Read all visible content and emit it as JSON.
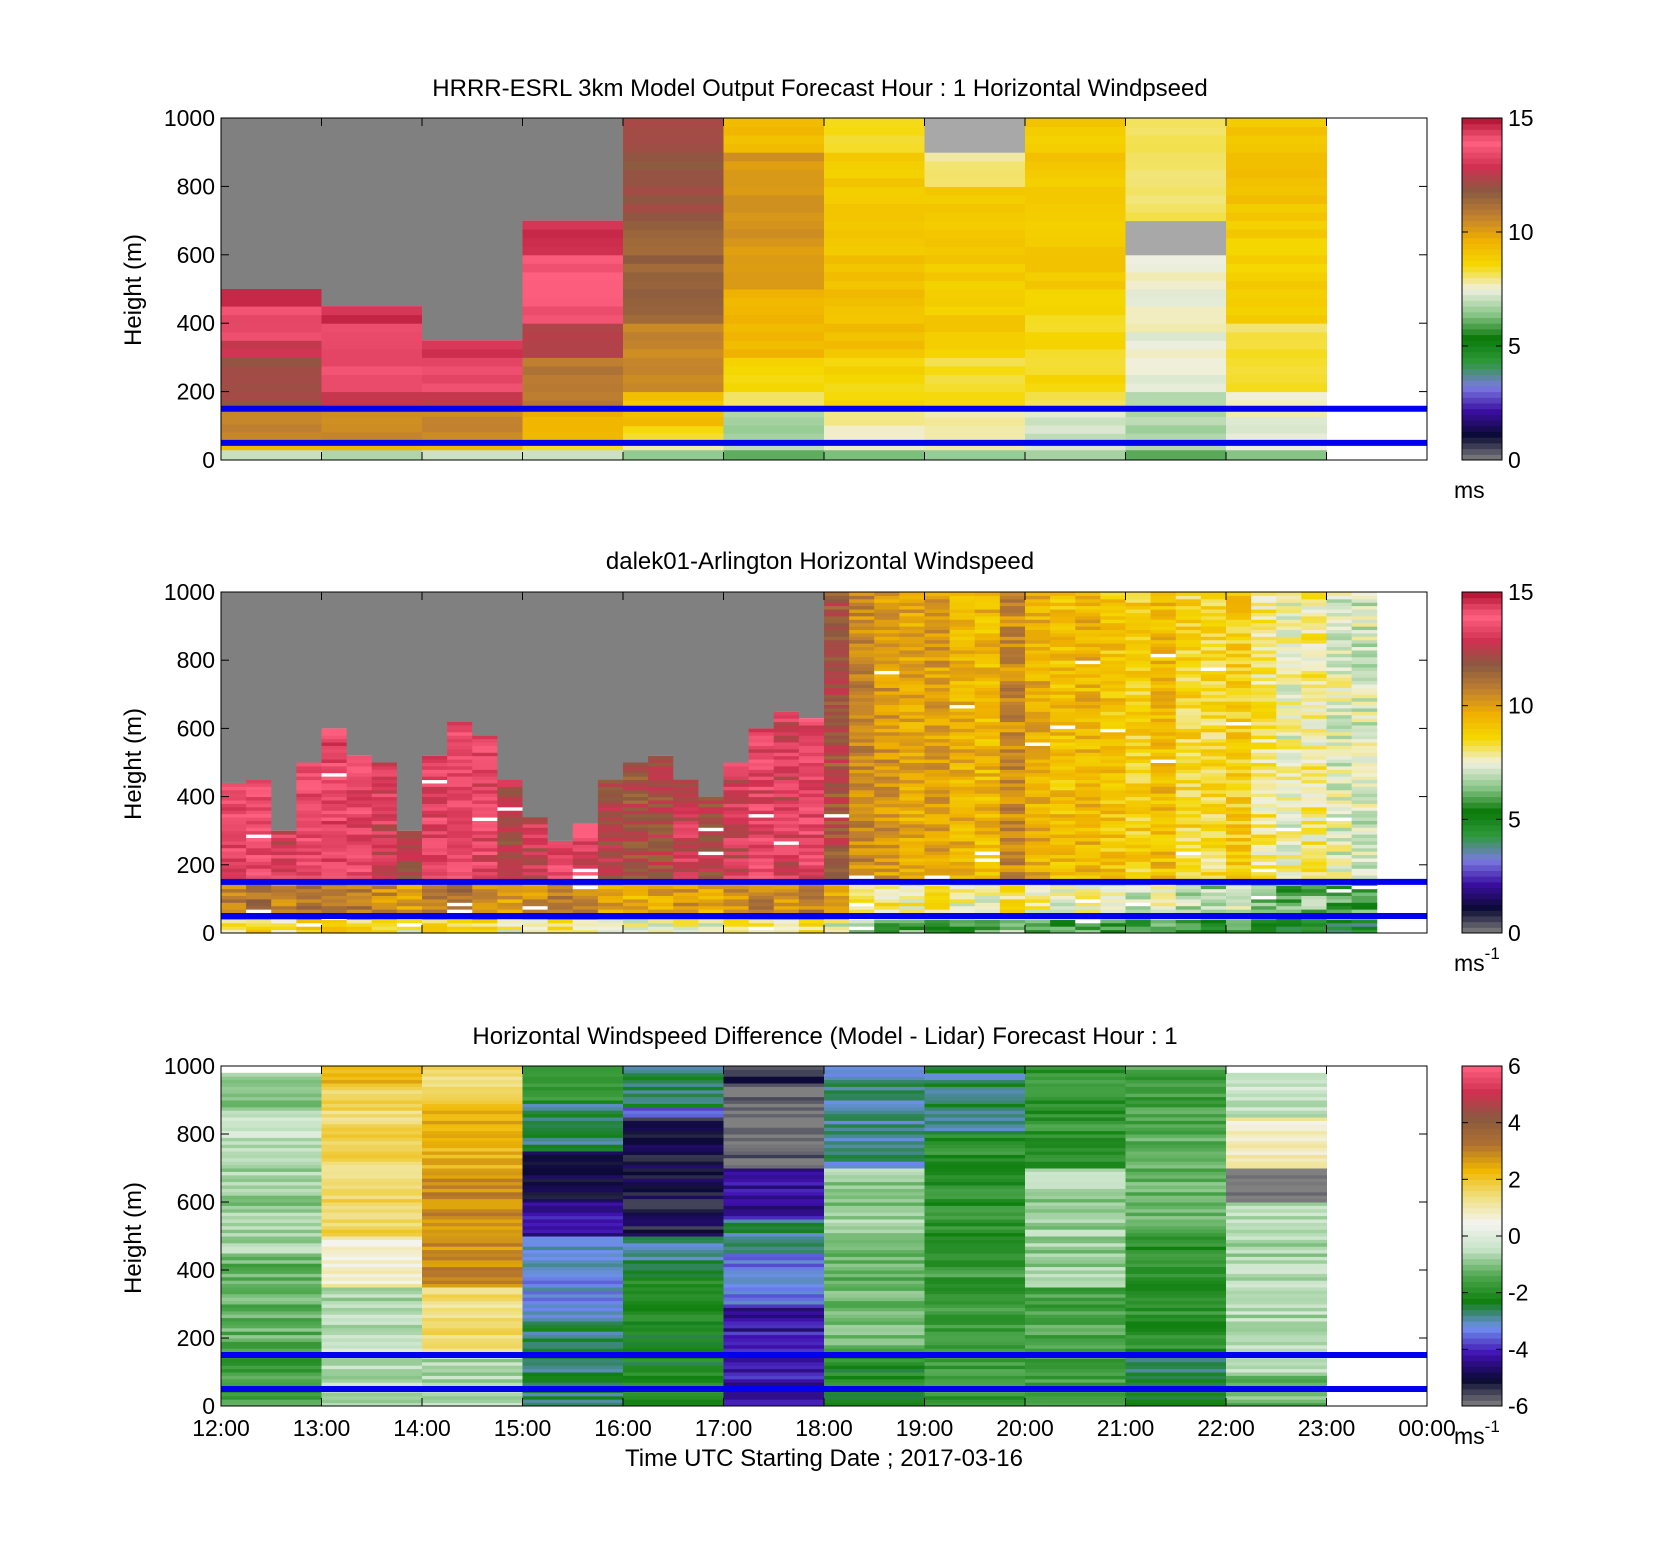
{
  "colors": {
    "background": "#ffffff",
    "guide_line": "#0000ee",
    "no_data": "#808080",
    "speed_scale": [
      "#808080",
      "#0a0a33",
      "#3a0ea0",
      "#7a7ae0",
      "#2e9a3a",
      "#0a7a0a",
      "#8cc88c",
      "#f0f0e0",
      "#f5d800",
      "#f0b000",
      "#c08030",
      "#8a5a40",
      "#d03050",
      "#ff6080",
      "#b01030"
    ],
    "diff_scale": [
      "#808080",
      "#0a0a33",
      "#4010b0",
      "#7090f0",
      "#108010",
      "#50a850",
      "#c8e4c8",
      "#f4f4f0",
      "#f0e080",
      "#f0b800",
      "#b07030",
      "#8a5a40",
      "#d03050",
      "#ff6080"
    ]
  },
  "time_ticks": [
    "12:00",
    "13:00",
    "14:00",
    "15:00",
    "16:00",
    "17:00",
    "18:00",
    "19:00",
    "20:00",
    "21:00",
    "22:00",
    "23:00",
    "00:00"
  ],
  "height_ticks": [
    "0",
    "200",
    "400",
    "600",
    "800",
    "1000"
  ],
  "ylabel": "Height (m)",
  "xlabel": "Time UTC  Starting Date ; 2017-03-16",
  "chart_data": [
    {
      "type": "heatmap",
      "title": "HRRR-ESRL 3km Model Output   Forecast Hour : 1 Horizontal Windpseed",
      "xlabel": "",
      "ylabel": "Height (m)",
      "x_range": [
        "12:00",
        "00:00"
      ],
      "ylim": [
        0,
        1000
      ],
      "colorbar": {
        "min": 0,
        "max": 15,
        "ticks": [
          "0",
          "5",
          "10",
          "15"
        ],
        "unit": "ms",
        "unit_sup": ""
      },
      "reference_heights_m": [
        50,
        150
      ],
      "columns": [
        {
          "t0": 12,
          "t1": 13,
          "top_m": 500,
          "segments": [
            {
              "h0": 0,
              "h1": 30,
              "v": 7
            },
            {
              "h0": 30,
              "h1": 60,
              "v": 9.5
            },
            {
              "h0": 60,
              "h1": 150,
              "v": 10.5
            },
            {
              "h0": 150,
              "h1": 300,
              "v": 12
            },
            {
              "h0": 300,
              "h1": 350,
              "v": 12.8
            },
            {
              "h0": 350,
              "h1": 450,
              "v": 13.5
            },
            {
              "h0": 450,
              "h1": 500,
              "v": 14.5
            }
          ]
        },
        {
          "t0": 13,
          "t1": 14,
          "top_m": 450,
          "segments": [
            {
              "h0": 0,
              "h1": 30,
              "v": 7
            },
            {
              "h0": 30,
              "h1": 60,
              "v": 9.5
            },
            {
              "h0": 60,
              "h1": 150,
              "v": 10.5
            },
            {
              "h0": 150,
              "h1": 200,
              "v": 12.5
            },
            {
              "h0": 200,
              "h1": 400,
              "v": 13.5
            },
            {
              "h0": 400,
              "h1": 450,
              "v": 14.5
            }
          ]
        },
        {
          "t0": 14,
          "t1": 15,
          "top_m": 350,
          "segments": [
            {
              "h0": 0,
              "h1": 30,
              "v": 7
            },
            {
              "h0": 30,
              "h1": 60,
              "v": 9.5
            },
            {
              "h0": 60,
              "h1": 150,
              "v": 10.5
            },
            {
              "h0": 150,
              "h1": 200,
              "v": 12.5
            },
            {
              "h0": 200,
              "h1": 300,
              "v": 13.5
            },
            {
              "h0": 300,
              "h1": 350,
              "v": 14.5
            }
          ]
        },
        {
          "t0": 15,
          "t1": 16,
          "top_m": 700,
          "segments": [
            {
              "h0": 0,
              "h1": 30,
              "v": 7
            },
            {
              "h0": 30,
              "h1": 60,
              "v": 8.5
            },
            {
              "h0": 60,
              "h1": 150,
              "v": 9.5
            },
            {
              "h0": 150,
              "h1": 300,
              "v": 11
            },
            {
              "h0": 300,
              "h1": 400,
              "v": 12.5
            },
            {
              "h0": 400,
              "h1": 450,
              "v": 13.5
            },
            {
              "h0": 450,
              "h1": 600,
              "v": 13.8
            },
            {
              "h0": 600,
              "h1": 700,
              "v": 14.6
            }
          ]
        },
        {
          "t0": 16,
          "t1": 17,
          "top_m": 1000,
          "segments": [
            {
              "h0": 0,
              "h1": 30,
              "v": 6.5
            },
            {
              "h0": 30,
              "h1": 60,
              "v": 7.5
            },
            {
              "h0": 60,
              "h1": 100,
              "v": 8.5
            },
            {
              "h0": 100,
              "h1": 200,
              "v": 9.2
            },
            {
              "h0": 200,
              "h1": 400,
              "v": 10.5
            },
            {
              "h0": 400,
              "h1": 700,
              "v": 11.5
            },
            {
              "h0": 700,
              "h1": 1000,
              "v": 12
            }
          ]
        },
        {
          "t0": 17,
          "t1": 18,
          "top_m": 1000,
          "segments": [
            {
              "h0": 0,
              "h1": 30,
              "v": 6
            },
            {
              "h0": 30,
              "h1": 150,
              "v": 6.8
            },
            {
              "h0": 150,
              "h1": 200,
              "v": 8
            },
            {
              "h0": 200,
              "h1": 300,
              "v": 8.5
            },
            {
              "h0": 300,
              "h1": 500,
              "v": 9.5
            },
            {
              "h0": 500,
              "h1": 900,
              "v": 10.2
            },
            {
              "h0": 900,
              "h1": 1000,
              "v": 9.4
            }
          ]
        },
        {
          "t0": 18,
          "t1": 19,
          "top_m": 1000,
          "segments": [
            {
              "h0": 0,
              "h1": 30,
              "v": 6.5
            },
            {
              "h0": 30,
              "h1": 150,
              "v": 7.8
            },
            {
              "h0": 150,
              "h1": 300,
              "v": 8.6
            },
            {
              "h0": 300,
              "h1": 600,
              "v": 9.2
            },
            {
              "h0": 600,
              "h1": 900,
              "v": 9
            },
            {
              "h0": 900,
              "h1": 1000,
              "v": 8.4
            }
          ]
        },
        {
          "t0": 19,
          "t1": 20,
          "top_m": 1000,
          "segments": [
            {
              "h0": 0,
              "h1": 30,
              "v": 6.5
            },
            {
              "h0": 30,
              "h1": 150,
              "v": 7.8
            },
            {
              "h0": 150,
              "h1": 300,
              "v": 8.3
            },
            {
              "h0": 300,
              "h1": 800,
              "v": 8.9
            },
            {
              "h0": 800,
              "h1": 900,
              "v": 8
            },
            {
              "h0": 900,
              "h1": 1000,
              "v": 0
            }
          ]
        },
        {
          "t0": 20,
          "t1": 21,
          "top_m": 1000,
          "segments": [
            {
              "h0": 0,
              "h1": 30,
              "v": 6.5
            },
            {
              "h0": 30,
              "h1": 150,
              "v": 7.2
            },
            {
              "h0": 150,
              "h1": 200,
              "v": 8
            },
            {
              "h0": 200,
              "h1": 500,
              "v": 8.5
            },
            {
              "h0": 500,
              "h1": 1000,
              "v": 9
            }
          ]
        },
        {
          "t0": 21,
          "t1": 22,
          "top_m": 1000,
          "segments": [
            {
              "h0": 0,
              "h1": 30,
              "v": 6
            },
            {
              "h0": 30,
              "h1": 200,
              "v": 6.8
            },
            {
              "h0": 200,
              "h1": 600,
              "v": 7.5
            },
            {
              "h0": 600,
              "h1": 700,
              "v": 0
            },
            {
              "h0": 700,
              "h1": 900,
              "v": 8
            },
            {
              "h0": 900,
              "h1": 1000,
              "v": 8.3
            }
          ]
        },
        {
          "t0": 22,
          "t1": 23,
          "top_m": 1000,
          "segments": [
            {
              "h0": 0,
              "h1": 30,
              "v": 6.2
            },
            {
              "h0": 30,
              "h1": 200,
              "v": 7.5
            },
            {
              "h0": 200,
              "h1": 400,
              "v": 8.2
            },
            {
              "h0": 400,
              "h1": 700,
              "v": 8.8
            },
            {
              "h0": 700,
              "h1": 1000,
              "v": 9.1
            }
          ]
        }
      ]
    },
    {
      "type": "heatmap",
      "title": "dalek01-Arlington  Horizontal Windspeed",
      "xlabel": "",
      "ylabel": "Height (m)",
      "x_range": [
        "12:00",
        "00:00"
      ],
      "ylim": [
        0,
        1000
      ],
      "colorbar": {
        "min": 0,
        "max": 15,
        "ticks": [
          "0",
          "5",
          "10",
          "15"
        ],
        "unit": "ms",
        "unit_sup": "-1"
      },
      "reference_heights_m": [
        50,
        150
      ],
      "profile_interval_h": 0.25,
      "profile_top_m": [
        440,
        450,
        300,
        500,
        600,
        520,
        500,
        300,
        520,
        620,
        580,
        450,
        340,
        270,
        320,
        450,
        500,
        520,
        450,
        400,
        500,
        600,
        650,
        630,
        1000,
        1000,
        1000,
        1000,
        1000,
        1000,
        1000,
        1000,
        1000,
        1000,
        1000,
        1000,
        1000,
        1000,
        1000,
        1000,
        1000,
        1000,
        1000,
        1000,
        1000,
        1000
      ],
      "profile_speed_ms": [
        13.5,
        13.8,
        13,
        13.6,
        14,
        13.5,
        13,
        12.5,
        13.4,
        13.8,
        13.2,
        12.4,
        12.8,
        13.5,
        13.2,
        12.4,
        12,
        12.2,
        12.8,
        12.3,
        12.9,
        13.3,
        12.9,
        13.4,
        12,
        10.5,
        10.2,
        9.8,
        10,
        9.6,
        9.4,
        10.5,
        9.7,
        9.2,
        9.5,
        9.1,
        8.8,
        9.3,
        8.6,
        8.4,
        8.9,
        8.1,
        7.6,
        8,
        7.4,
        7.2
      ]
    },
    {
      "type": "heatmap",
      "title": "Horizontal Windspeed Difference (Model - Lidar) Forecast Hour : 1",
      "xlabel": "Time UTC  Starting Date ; 2017-03-16",
      "ylabel": "Height (m)",
      "x_range": [
        "12:00",
        "00:00"
      ],
      "ylim": [
        0,
        1000
      ],
      "colorbar": {
        "min": -6,
        "max": 6,
        "ticks": [
          "-6",
          "-4",
          "-2",
          "0",
          "2",
          "4",
          "6"
        ],
        "unit": "ms",
        "unit_sup": "-1"
      },
      "reference_heights_m": [
        50,
        150
      ],
      "columns": [
        {
          "t0": 12,
          "t1": 13,
          "top_m": 980,
          "segments": [
            {
              "h0": 0,
              "h1": 200,
              "v": -1.6
            },
            {
              "h0": 200,
              "h1": 450,
              "v": -1.3
            },
            {
              "h0": 450,
              "h1": 700,
              "v": -0.8
            },
            {
              "h0": 700,
              "h1": 850,
              "v": -0.4
            },
            {
              "h0": 850,
              "h1": 980,
              "v": -0.9
            }
          ]
        },
        {
          "t0": 13,
          "t1": 14,
          "top_m": 1000,
          "segments": [
            {
              "h0": 0,
              "h1": 100,
              "v": -0.6
            },
            {
              "h0": 100,
              "h1": 200,
              "v": -0.4
            },
            {
              "h0": 200,
              "h1": 350,
              "v": -0.6
            },
            {
              "h0": 350,
              "h1": 500,
              "v": 0.8
            },
            {
              "h0": 500,
              "h1": 950,
              "v": 1.6
            },
            {
              "h0": 950,
              "h1": 1000,
              "v": 2.3
            }
          ]
        },
        {
          "t0": 14,
          "t1": 15,
          "top_m": 1000,
          "segments": [
            {
              "h0": 0,
              "h1": 150,
              "v": -0.6
            },
            {
              "h0": 150,
              "h1": 350,
              "v": 1.4
            },
            {
              "h0": 350,
              "h1": 700,
              "v": 2.8
            },
            {
              "h0": 700,
              "h1": 900,
              "v": 2.3
            },
            {
              "h0": 900,
              "h1": 1000,
              "v": 1.5
            }
          ]
        },
        {
          "t0": 15,
          "t1": 16,
          "top_m": 1000,
          "segments": [
            {
              "h0": 0,
              "h1": 250,
              "v": -2.6
            },
            {
              "h0": 250,
              "h1": 500,
              "v": -3.2
            },
            {
              "h0": 500,
              "h1": 600,
              "v": -4.2
            },
            {
              "h0": 600,
              "h1": 750,
              "v": -5
            },
            {
              "h0": 750,
              "h1": 900,
              "v": -2.6
            },
            {
              "h0": 900,
              "h1": 1000,
              "v": -1.7
            }
          ]
        },
        {
          "t0": 16,
          "t1": 17,
          "top_m": 1000,
          "segments": [
            {
              "h0": 0,
              "h1": 400,
              "v": -2.2
            },
            {
              "h0": 400,
              "h1": 500,
              "v": -2.8
            },
            {
              "h0": 500,
              "h1": 850,
              "v": -5.1
            },
            {
              "h0": 850,
              "h1": 880,
              "v": -3.5
            },
            {
              "h0": 880,
              "h1": 1000,
              "v": -2.6
            }
          ]
        },
        {
          "t0": 17,
          "t1": 18,
          "top_m": 1000,
          "segments": [
            {
              "h0": 0,
              "h1": 300,
              "v": -4.2
            },
            {
              "h0": 300,
              "h1": 450,
              "v": -3.3
            },
            {
              "h0": 450,
              "h1": 550,
              "v": -2.8
            },
            {
              "h0": 550,
              "h1": 700,
              "v": -4.4
            },
            {
              "h0": 700,
              "h1": 750,
              "v": -5.8
            },
            {
              "h0": 750,
              "h1": 950,
              "v": -6
            },
            {
              "h0": 950,
              "h1": 1000,
              "v": -5.3
            }
          ]
        },
        {
          "t0": 18,
          "t1": 19,
          "top_m": 1000,
          "segments": [
            {
              "h0": 0,
              "h1": 150,
              "v": -2.1
            },
            {
              "h0": 150,
              "h1": 450,
              "v": -1.2
            },
            {
              "h0": 450,
              "h1": 700,
              "v": -0.9
            },
            {
              "h0": 700,
              "h1": 1000,
              "v": -2.9
            }
          ]
        },
        {
          "t0": 19,
          "t1": 20,
          "top_m": 1000,
          "segments": [
            {
              "h0": 0,
              "h1": 400,
              "v": -1.7
            },
            {
              "h0": 400,
              "h1": 800,
              "v": -1.9
            },
            {
              "h0": 800,
              "h1": 1000,
              "v": -2.7
            }
          ]
        },
        {
          "t0": 20,
          "t1": 21,
          "top_m": 1000,
          "segments": [
            {
              "h0": 0,
              "h1": 350,
              "v": -1.5
            },
            {
              "h0": 350,
              "h1": 700,
              "v": -0.8
            },
            {
              "h0": 700,
              "h1": 1000,
              "v": -1.8
            }
          ]
        },
        {
          "t0": 21,
          "t1": 22,
          "top_m": 1000,
          "segments": [
            {
              "h0": 0,
              "h1": 150,
              "v": -2.5
            },
            {
              "h0": 150,
              "h1": 500,
              "v": -1.9
            },
            {
              "h0": 500,
              "h1": 800,
              "v": -1.3
            },
            {
              "h0": 800,
              "h1": 1000,
              "v": -1.6
            }
          ]
        },
        {
          "t0": 22,
          "t1": 23,
          "top_m": 980,
          "segments": [
            {
              "h0": 0,
              "h1": 100,
              "v": -1.2
            },
            {
              "h0": 100,
              "h1": 600,
              "v": -0.6
            },
            {
              "h0": 600,
              "h1": 700,
              "v": -6
            },
            {
              "h0": 700,
              "h1": 850,
              "v": 0.8
            },
            {
              "h0": 850,
              "h1": 980,
              "v": -0.4
            }
          ]
        }
      ]
    }
  ]
}
